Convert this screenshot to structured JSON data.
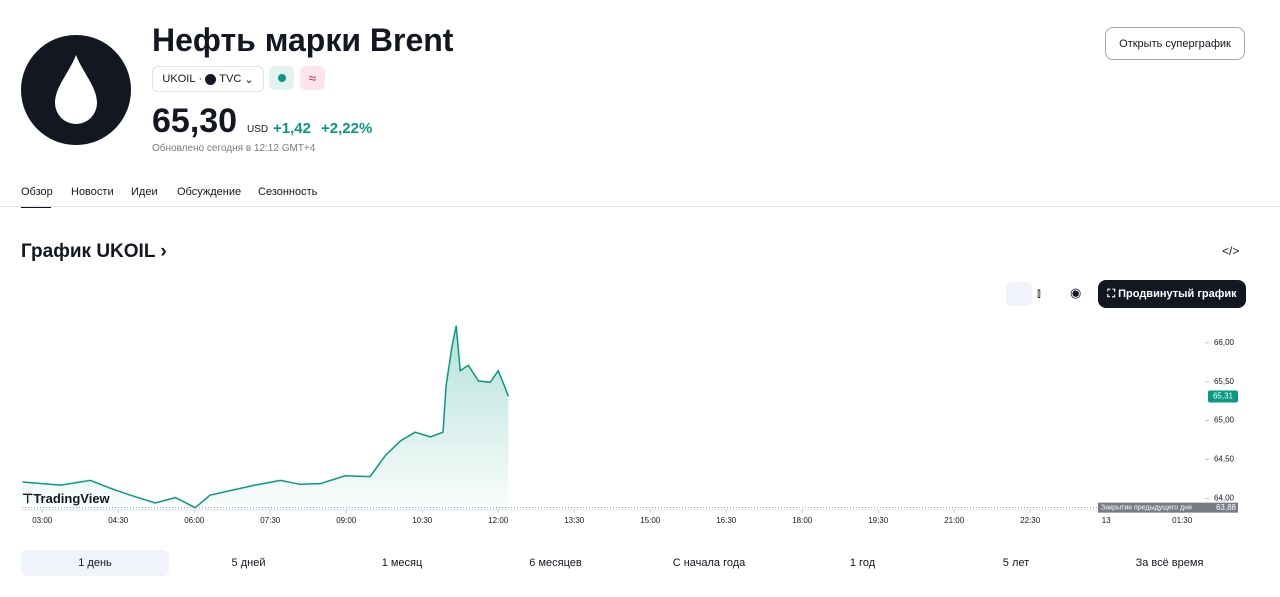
{
  "header": {
    "title": "Нефть марки Brent",
    "symbol": "UKOIL",
    "exchange": "TVC",
    "price": "65,30",
    "currency": "USD",
    "change": "+1,42",
    "change_pct": "+2,22%",
    "updated": "Обновлено сегодня в 12:12 GMT+4",
    "badge": "≈",
    "super_button": "Открыть суперграфик"
  },
  "tabs": [
    "Обзор",
    "Новости",
    "Идеи",
    "Обсуждение",
    "Сезонность"
  ],
  "section_title": "График UKOIL",
  "advanced_button": "Продвинутый график",
  "logo": "TradingView",
  "ranges": [
    "1 день",
    "5 дней",
    "1 месяц",
    "6 месяцев",
    "С начала года",
    "1 год",
    "5 лет",
    "За всё время"
  ],
  "chart_data": {
    "type": "line",
    "color": "#089981",
    "x": [
      2.61,
      3.36,
      3.95,
      4.34,
      4.74,
      5.23,
      5.63,
      6.02,
      6.31,
      6.71,
      7.2,
      7.7,
      8.09,
      8.49,
      8.98,
      9.47,
      9.77,
      10.07,
      10.36,
      10.66,
      10.91,
      10.97,
      11.09,
      11.17,
      11.25,
      11.41,
      11.61,
      11.84,
      12.0,
      12.12,
      12.2
    ],
    "values": [
      64.21,
      64.17,
      64.23,
      64.13,
      64.04,
      63.94,
      64.01,
      63.88,
      64.04,
      64.1,
      64.17,
      64.23,
      64.18,
      64.19,
      64.29,
      64.28,
      64.55,
      64.74,
      64.85,
      64.79,
      64.85,
      65.45,
      65.96,
      66.22,
      65.64,
      65.71,
      65.51,
      65.49,
      65.64,
      65.45,
      65.31
    ],
    "xlim": [
      2.6,
      25.95
    ],
    "ylim": [
      63.85,
      66.55
    ],
    "xticks": [
      {
        "value": 3,
        "label": "03:00"
      },
      {
        "value": 4.5,
        "label": "04:30"
      },
      {
        "value": 6,
        "label": "06:00"
      },
      {
        "value": 7.5,
        "label": "07:30"
      },
      {
        "value": 9,
        "label": "09:00"
      },
      {
        "value": 10.5,
        "label": "10:30"
      },
      {
        "value": 12,
        "label": "12:00"
      },
      {
        "value": 13.5,
        "label": "13:30"
      },
      {
        "value": 15,
        "label": "15:00"
      },
      {
        "value": 16.5,
        "label": "16:30"
      },
      {
        "value": 18,
        "label": "18:00"
      },
      {
        "value": 19.5,
        "label": "19:30"
      },
      {
        "value": 21,
        "label": "21:00"
      },
      {
        "value": 22.5,
        "label": "22:30"
      },
      {
        "value": 24,
        "label": "13"
      },
      {
        "value": 25.5,
        "label": "01:30"
      }
    ],
    "yticks": [
      {
        "value": 64,
        "label": "64,00"
      },
      {
        "value": 64.5,
        "label": "64,50"
      },
      {
        "value": 65,
        "label": "65,00"
      },
      {
        "value": 65.5,
        "label": "65,50"
      },
      {
        "value": 66,
        "label": "66,00"
      }
    ],
    "last_price": {
      "value": 65.31,
      "label": "65,31"
    },
    "prev_close": {
      "name": "Закрытие предыдущего дня",
      "value": 63.88,
      "label": "63,88"
    }
  }
}
